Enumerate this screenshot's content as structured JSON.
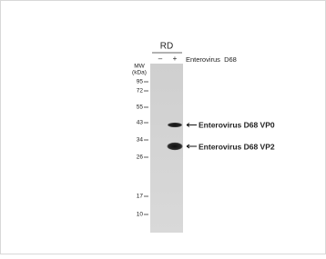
{
  "header": {
    "cell_line": "RD",
    "lanes": [
      "–",
      "+"
    ],
    "treatment": "Enterovirus  D68"
  },
  "marker": {
    "title": "MW",
    "unit": "(kDa)",
    "sizes": [
      "95",
      "72",
      "55",
      "43",
      "34",
      "26",
      "17",
      "10"
    ]
  },
  "bands": [
    {
      "label": "Enterovirus D68 VP0"
    },
    {
      "label": "Enterovirus D68 VP2"
    }
  ]
}
